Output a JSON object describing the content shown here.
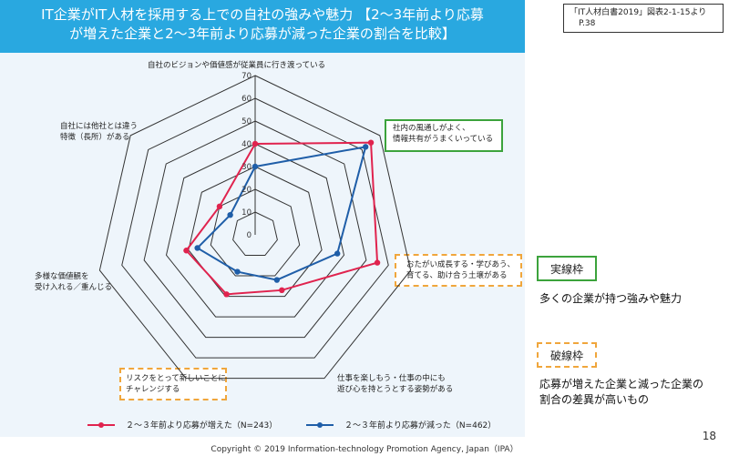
{
  "title": {
    "line1": "IT企業がIT人材を採用する上での自社の強みや魅力 【2～3年前より応募",
    "line2": "が増えた企業と2～3年前より応募が減った企業の割合を比較】"
  },
  "source": {
    "line1": "「IT人材白書2019」図表2-1-15より",
    "line2": "P.38"
  },
  "key": {
    "solid_label": "実線枠",
    "solid_desc": "多くの企業が持つ強みや魅力",
    "dashed_label": "破線枠",
    "dashed_desc_line1": "応募が増えた企業と減った企業の",
    "dashed_desc_line2": "割合の差異が高いもの"
  },
  "footer": "Copyright © 2019 Information-technology Promotion Agency, Japan（IPA）",
  "page_number": "18",
  "colors": {
    "increase": "#e0234e",
    "decrease": "#1f5ea8",
    "title_bg": "#29a8e0",
    "solid_frame": "#3ca33c",
    "dashed_frame": "#f0a63c"
  },
  "chart_data": {
    "type": "radar",
    "axis": {
      "min": 0,
      "max": 70,
      "step": 10,
      "ticks": [
        "0",
        "10",
        "20",
        "30",
        "40",
        "50",
        "60",
        "70"
      ]
    },
    "categories": [
      "自社のビジョンや価値感が従業員に行き渡っている",
      "社内の風通しがよく、情報共有がうまくいっている",
      "おたがい成長する・学びあう、育てる、助け合う土壌がある",
      "仕事を楽しもう・仕事の中にも遊び心を持とうとする姿勢がある",
      "リスクをとって新しいことにチャレンジする",
      "多様な価値観を受け入れる／重んじる",
      "自社には他社とは違う特徴（長所）がある"
    ],
    "category_lines": [
      [
        "自社のビジョンや価値感が従業員に行き渡っている"
      ],
      [
        "社内の風通しがよく、",
        "情報共有がうまくいっている"
      ],
      [
        "おたがい成長する・学びあう、",
        "育てる、助け合う土壌がある"
      ],
      [
        "仕事を楽しもう・仕事の中にも",
        "遊び心を持とうとする姿勢がある"
      ],
      [
        "リスクをとって新しいことに",
        "チャレンジする"
      ],
      [
        "多様な価値観を",
        "受け入れる／重んじる"
      ],
      [
        "自社には他社とは違う",
        "特徴（長所）がある"
      ]
    ],
    "series": [
      {
        "name": "２～３年前より応募が増えた（N=243）",
        "values": [
          40,
          65,
          55,
          27,
          29,
          31,
          20
        ]
      },
      {
        "name": "２～３年前より応募が減った（N=462）",
        "values": [
          30,
          62,
          37,
          22,
          18,
          26,
          14
        ]
      }
    ]
  }
}
